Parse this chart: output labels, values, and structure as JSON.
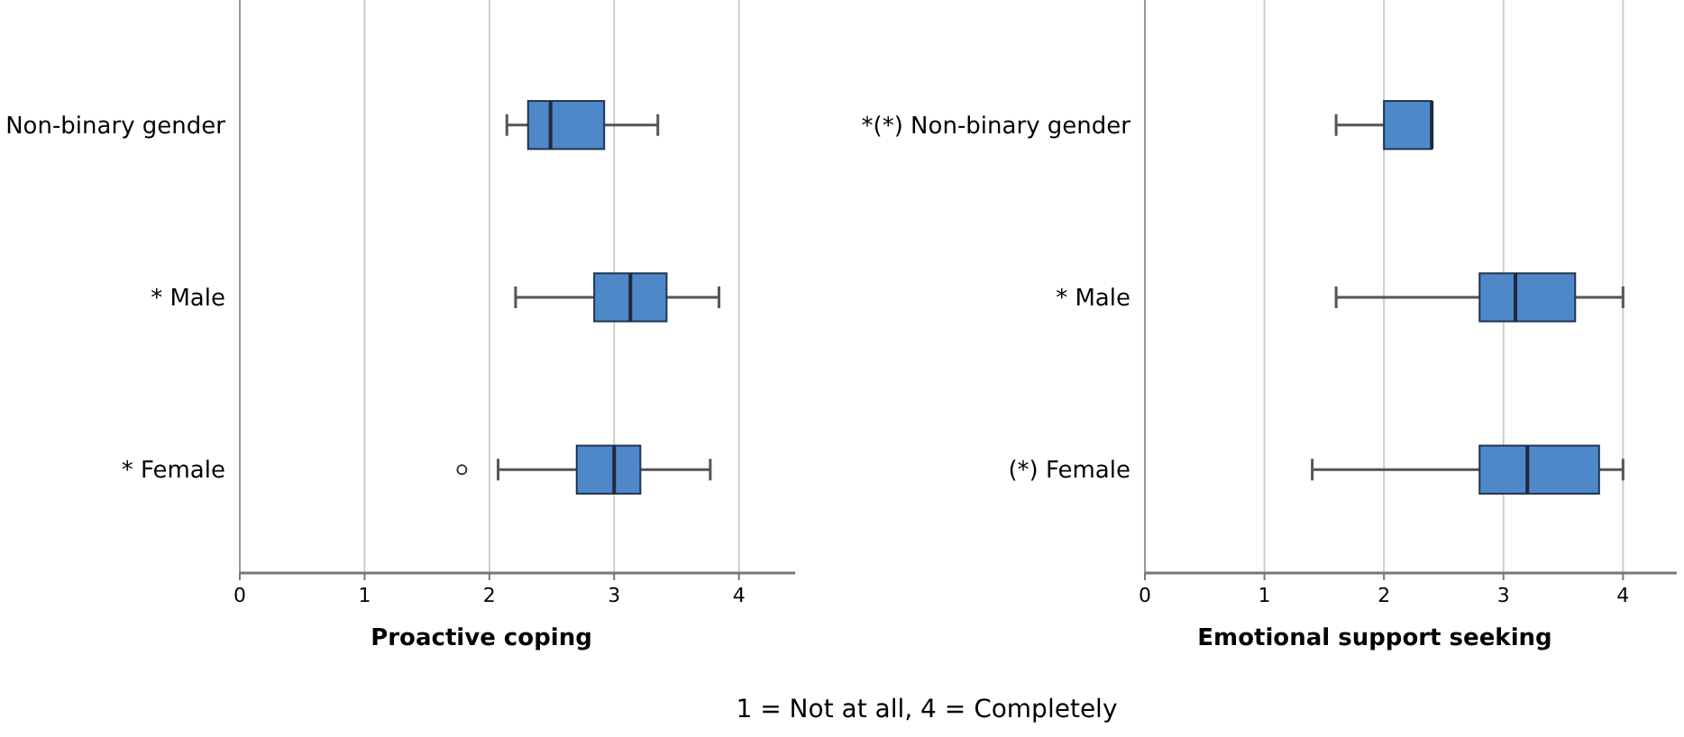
{
  "chart_data": [
    {
      "type": "box",
      "orientation": "horizontal",
      "categories": [
        "Non-binary gender",
        "* Male",
        "* Female"
      ],
      "xlabel": "Proactive coping",
      "xlim": [
        0,
        4.45
      ],
      "xticks": [
        0,
        1,
        2,
        3,
        4
      ],
      "grid": "x",
      "color": "#4f88c9",
      "boxes": [
        {
          "low": 2.14,
          "q1": 2.31,
          "median": 2.49,
          "q3": 2.92,
          "high": 3.35
        },
        {
          "low": 2.21,
          "q1": 2.84,
          "median": 3.13,
          "q3": 3.42,
          "high": 3.84
        },
        {
          "low": 2.07,
          "q1": 2.7,
          "median": 3.0,
          "q3": 3.21,
          "high": 3.77,
          "outliers": [
            1.78
          ]
        }
      ]
    },
    {
      "type": "box",
      "orientation": "horizontal",
      "categories": [
        "*(*) Non-binary gender",
        "* Male",
        "(*) Female"
      ],
      "xlabel": "Emotional support seeking",
      "xlim": [
        0,
        4.45
      ],
      "xticks": [
        0,
        1,
        2,
        3,
        4
      ],
      "grid": "x",
      "color": "#4f88c9",
      "annotations": [
        "1 = Not at all, 4 = Completely"
      ],
      "boxes": [
        {
          "low": 1.6,
          "q1": 2.0,
          "median": 2.4,
          "q3": 2.4,
          "high": 2.4
        },
        {
          "low": 1.6,
          "q1": 2.8,
          "median": 3.1,
          "q3": 3.6,
          "high": 4.0
        },
        {
          "low": 1.4,
          "q1": 2.8,
          "median": 3.2,
          "q3": 3.8,
          "high": 4.0
        }
      ]
    }
  ]
}
